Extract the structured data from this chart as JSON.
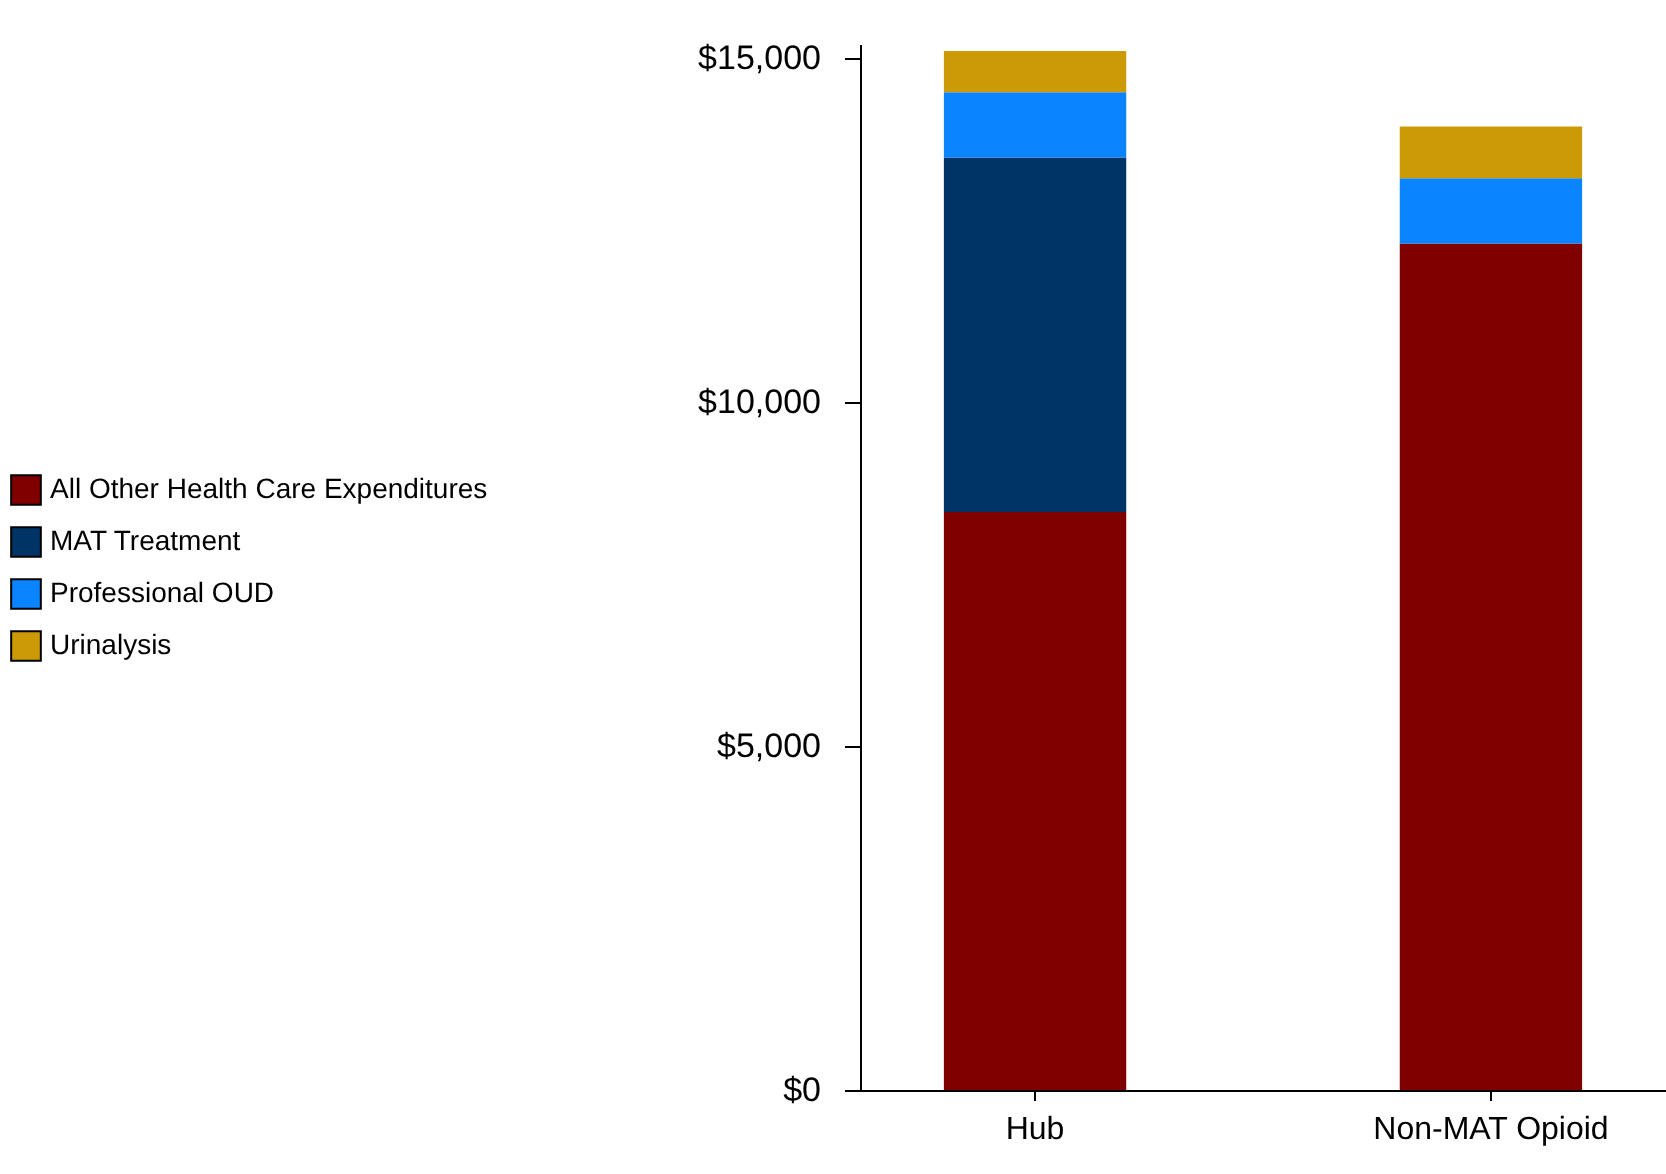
{
  "chart_data": {
    "type": "bar",
    "stacked": true,
    "categories": [
      "Hub",
      "Non-MAT Opioid"
    ],
    "series": [
      {
        "name": "All Other Health Care Expenditures",
        "color": "#800000",
        "values": [
          8400,
          12300
        ]
      },
      {
        "name": "MAT Treatment",
        "color": "#003366",
        "values": [
          5150,
          0
        ]
      },
      {
        "name": "Professional OUD",
        "color": "#0a84ff",
        "values": [
          950,
          950
        ]
      },
      {
        "name": "Urinalysis",
        "color": "#cc9a06",
        "values": [
          600,
          750
        ]
      }
    ],
    "ylim": [
      0,
      15200
    ],
    "yticks": [
      {
        "value": 0,
        "label": "$0"
      },
      {
        "value": 5000,
        "label": "$5,000"
      },
      {
        "value": 10000,
        "label": "$10,000"
      },
      {
        "value": 15000,
        "label": "$15,000"
      }
    ],
    "grid": false,
    "legend": "left"
  }
}
